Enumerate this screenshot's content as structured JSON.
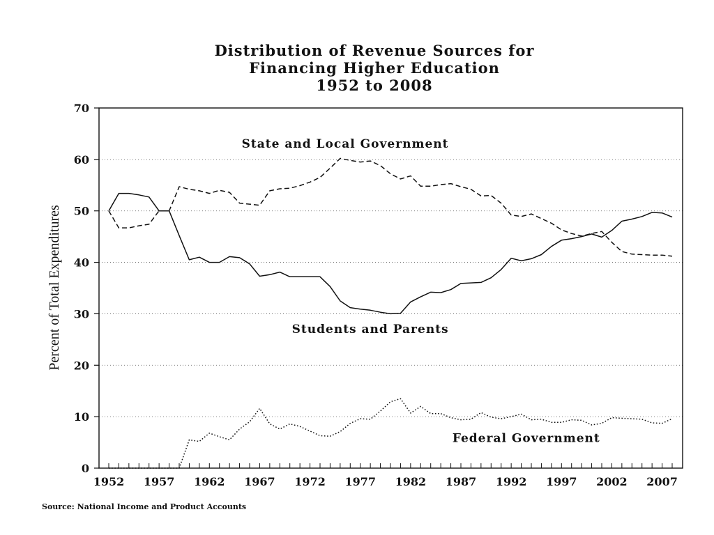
{
  "chart_data": {
    "type": "line",
    "title": [
      "Distribution of Revenue Sources for",
      "Financing Higher Education",
      "1952 to 2008"
    ],
    "xlabel": "",
    "ylabel": "Percent of Total Expenditures",
    "xlim": [
      1952,
      2008
    ],
    "ylim": [
      0,
      70
    ],
    "yticks": [
      0,
      10,
      20,
      30,
      40,
      50,
      60,
      70
    ],
    "xticks": [
      "1952",
      "1957",
      "1962",
      "1967",
      "1972",
      "1977",
      "1982",
      "1987",
      "1992",
      "1997",
      "2002",
      "2007"
    ],
    "grid": "horizontal dotted",
    "series": [
      {
        "name": "State and Local Government",
        "style": "dashed",
        "x": [
          1952,
          1953,
          1954,
          1955,
          1956,
          1957,
          1958,
          1959,
          1960,
          1961,
          1962,
          1963,
          1964,
          1965,
          1966,
          1967,
          1968,
          1969,
          1970,
          1971,
          1972,
          1973,
          1974,
          1975,
          1976,
          1977,
          1978,
          1979,
          1980,
          1981,
          1982,
          1983,
          1984,
          1985,
          1986,
          1987,
          1988,
          1989,
          1990,
          1991,
          1992,
          1993,
          1994,
          1995,
          1996,
          1997,
          1998,
          1999,
          2000,
          2001,
          2002,
          2003,
          2004,
          2005,
          2006,
          2007,
          2008
        ],
        "values": [
          50,
          46.7,
          46.7,
          47.1,
          47.4,
          50,
          50,
          54.7,
          54.2,
          53.9,
          53.4,
          54,
          53.6,
          51.5,
          51.3,
          51.1,
          53.9,
          54.3,
          54.4,
          54.9,
          55.6,
          56.5,
          58.3,
          60.2,
          59.8,
          59.5,
          59.7,
          58.8,
          57.2,
          56.2,
          56.8,
          54.8,
          54.8,
          55.1,
          55.3,
          54.7,
          54.2,
          52.9,
          53,
          51.5,
          49.2,
          48.9,
          49.4,
          48.5,
          47.6,
          46.3,
          45.6,
          45.1,
          45.6,
          46,
          43.9,
          42.1,
          41.6,
          41.5,
          41.4,
          41.4,
          41.2
        ]
      },
      {
        "name": "Students and Parents",
        "style": "solid",
        "x": [
          1952,
          1953,
          1954,
          1955,
          1956,
          1957,
          1958,
          1959,
          1960,
          1961,
          1962,
          1963,
          1964,
          1965,
          1966,
          1967,
          1968,
          1969,
          1970,
          1971,
          1972,
          1973,
          1974,
          1975,
          1976,
          1977,
          1978,
          1979,
          1980,
          1981,
          1982,
          1983,
          1984,
          1985,
          1986,
          1987,
          1988,
          1989,
          1990,
          1991,
          1992,
          1993,
          1994,
          1995,
          1996,
          1997,
          1998,
          1999,
          2000,
          2001,
          2002,
          2003,
          2004,
          2005,
          2006,
          2007,
          2008
        ],
        "values": [
          50,
          53.4,
          53.4,
          53.1,
          52.7,
          50,
          50,
          45.2,
          40.5,
          41,
          40,
          40,
          41.1,
          40.9,
          39.7,
          37.3,
          37.6,
          38.1,
          37.2,
          37.2,
          37.2,
          37.2,
          35.3,
          32.5,
          31.2,
          30.9,
          30.7,
          30.3,
          30,
          30.1,
          32.3,
          33.3,
          34.2,
          34.1,
          34.7,
          35.9,
          36,
          36.1,
          37,
          38.6,
          40.8,
          40.3,
          40.7,
          41.5,
          43.1,
          44.3,
          44.6,
          45,
          45.5,
          44.9,
          46.2,
          48,
          48.4,
          48.9,
          49.7,
          49.6,
          48.8
        ]
      },
      {
        "name": "Federal Government",
        "style": "dotted",
        "x": [
          1952,
          1953,
          1954,
          1955,
          1956,
          1957,
          1958,
          1959,
          1960,
          1961,
          1962,
          1963,
          1964,
          1965,
          1966,
          1967,
          1968,
          1969,
          1970,
          1971,
          1972,
          1973,
          1974,
          1975,
          1976,
          1977,
          1978,
          1979,
          1980,
          1981,
          1982,
          1983,
          1984,
          1985,
          1986,
          1987,
          1988,
          1989,
          1990,
          1991,
          1992,
          1993,
          1994,
          1995,
          1996,
          1997,
          1998,
          1999,
          2000,
          2001,
          2002,
          2003,
          2004,
          2005,
          2006,
          2007,
          2008
        ],
        "values": [
          0,
          0,
          0,
          0,
          0,
          0,
          0,
          0,
          5.5,
          5.2,
          6.8,
          6.1,
          5.5,
          7.6,
          9,
          11.6,
          8.6,
          7.6,
          8.6,
          8.1,
          7.2,
          6.3,
          6.2,
          7.1,
          8.7,
          9.6,
          9.5,
          11.1,
          12.9,
          13.5,
          10.7,
          12,
          10.6,
          10.6,
          9.8,
          9.4,
          9.5,
          10.8,
          9.9,
          9.6,
          10,
          10.5,
          9.4,
          9.5,
          8.9,
          8.9,
          9.4,
          9.3,
          8.4,
          8.7,
          9.8,
          9.7,
          9.6,
          9.5,
          8.8,
          8.7,
          9.6
        ]
      }
    ],
    "annotations": [
      {
        "text": "State and Local Government",
        "x": 1975.5,
        "y": 62.3
      },
      {
        "text": "Students and Parents",
        "x": 1978,
        "y": 26.3
      },
      {
        "text": "Federal Government",
        "x": 1993.5,
        "y": 5.1
      }
    ],
    "source": "Source: National Income and Product Accounts"
  }
}
